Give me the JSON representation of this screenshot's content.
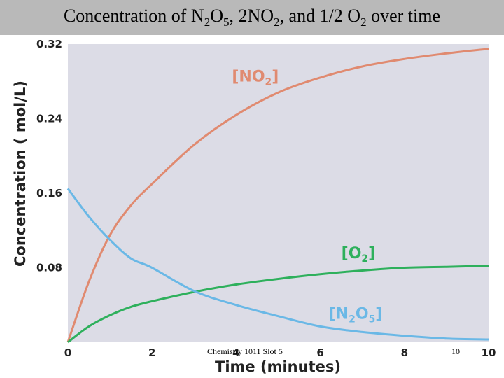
{
  "slide": {
    "footer_left": "Chemistry 1011 Slot 5",
    "page_number": "10"
  },
  "chart_data": {
    "type": "line",
    "title": {
      "parts": [
        {
          "t": "Concentration of N"
        },
        {
          "t": "2",
          "sub": true
        },
        {
          "t": "O"
        },
        {
          "t": "5",
          "sub": true
        },
        {
          "t": ", 2NO"
        },
        {
          "t": "2",
          "sub": true
        },
        {
          "t": ", and 1/2 O"
        },
        {
          "t": "2",
          "sub": true
        },
        {
          "t": " over time"
        }
      ]
    },
    "xlabel": "Time (minutes)",
    "ylabel": "Concentration ( mol/L)",
    "xlim": [
      0,
      10
    ],
    "ylim": [
      0,
      0.32
    ],
    "x_ticks": [
      "0",
      "2",
      "4",
      "6",
      "8",
      "10"
    ],
    "y_ticks": [
      "0.08",
      "0.16",
      "0.24",
      "0.32"
    ],
    "grid": false,
    "background_color": "#dcdce6",
    "series": [
      {
        "name": "[NO2]",
        "label_parts": [
          {
            "t": "[NO"
          },
          {
            "t": "2",
            "sub": true
          },
          {
            "t": "]"
          }
        ],
        "color": "#e08a70",
        "label_anchor": [
          3.9,
          0.28
        ],
        "x": [
          0,
          0.5,
          1,
          1.5,
          2,
          3,
          4,
          5,
          6,
          7,
          8,
          9,
          10
        ],
        "y": [
          0,
          0.065,
          0.115,
          0.147,
          0.17,
          0.212,
          0.244,
          0.268,
          0.284,
          0.296,
          0.304,
          0.31,
          0.315
        ]
      },
      {
        "name": "[O2]",
        "label_parts": [
          {
            "t": "[O"
          },
          {
            "t": "2",
            "sub": true
          },
          {
            "t": "]"
          }
        ],
        "color": "#2eb05c",
        "label_anchor": [
          6.5,
          0.09
        ],
        "x": [
          0,
          0.5,
          1,
          1.5,
          2,
          3,
          4,
          5,
          6,
          7,
          8,
          9,
          10
        ],
        "y": [
          0,
          0.017,
          0.029,
          0.038,
          0.044,
          0.054,
          0.062,
          0.068,
          0.073,
          0.077,
          0.08,
          0.081,
          0.082
        ]
      },
      {
        "name": "[N2O5]",
        "label_parts": [
          {
            "t": "[N"
          },
          {
            "t": "2",
            "sub": true
          },
          {
            "t": "O"
          },
          {
            "t": "5",
            "sub": true
          },
          {
            "t": "]"
          }
        ],
        "color": "#6ab8e6",
        "label_anchor": [
          6.2,
          0.025
        ],
        "x": [
          0,
          0.5,
          1,
          1.5,
          2,
          3,
          4,
          5,
          6,
          7,
          8,
          9,
          10
        ],
        "y": [
          0.165,
          0.135,
          0.11,
          0.09,
          0.08,
          0.055,
          0.04,
          0.028,
          0.017,
          0.011,
          0.007,
          0.004,
          0.003
        ]
      }
    ]
  }
}
